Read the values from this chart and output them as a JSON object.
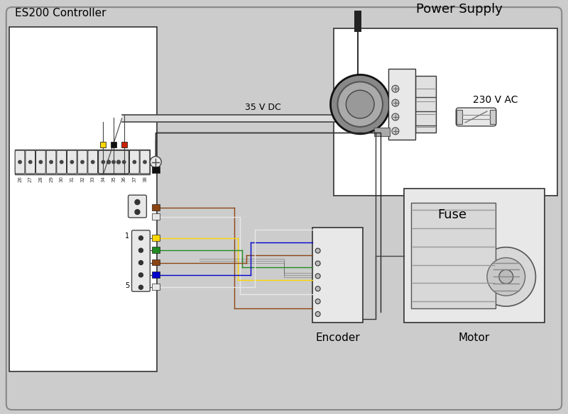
{
  "bg_color": "#cccccc",
  "panel_color": "#ffffff",
  "box_edge": "#555555",
  "labels": {
    "es200_controller": "ES200 Controller",
    "power_supply": "Power Supply",
    "fuse": "Fuse",
    "encoder": "Encoder",
    "motor": "Motor",
    "35vdc": "35 V DC",
    "230vac": "230 V AC"
  },
  "terminal_numbers": [
    "26",
    "27",
    "28",
    "29",
    "30",
    "31",
    "32",
    "33",
    "34",
    "35",
    "36",
    "37",
    "38"
  ],
  "wire_colors_top": [
    "#FFD700",
    "#111111",
    "#cc2200"
  ],
  "wire_colors_bottom": [
    "#111111",
    "#8B4513",
    "#e0e0e0",
    "#FFD700",
    "#228B22",
    "#8B4513",
    "#0000cc",
    "#e0e0e0"
  ],
  "font_size_label": 11,
  "font_size_small": 9,
  "font_size_tiny": 5
}
